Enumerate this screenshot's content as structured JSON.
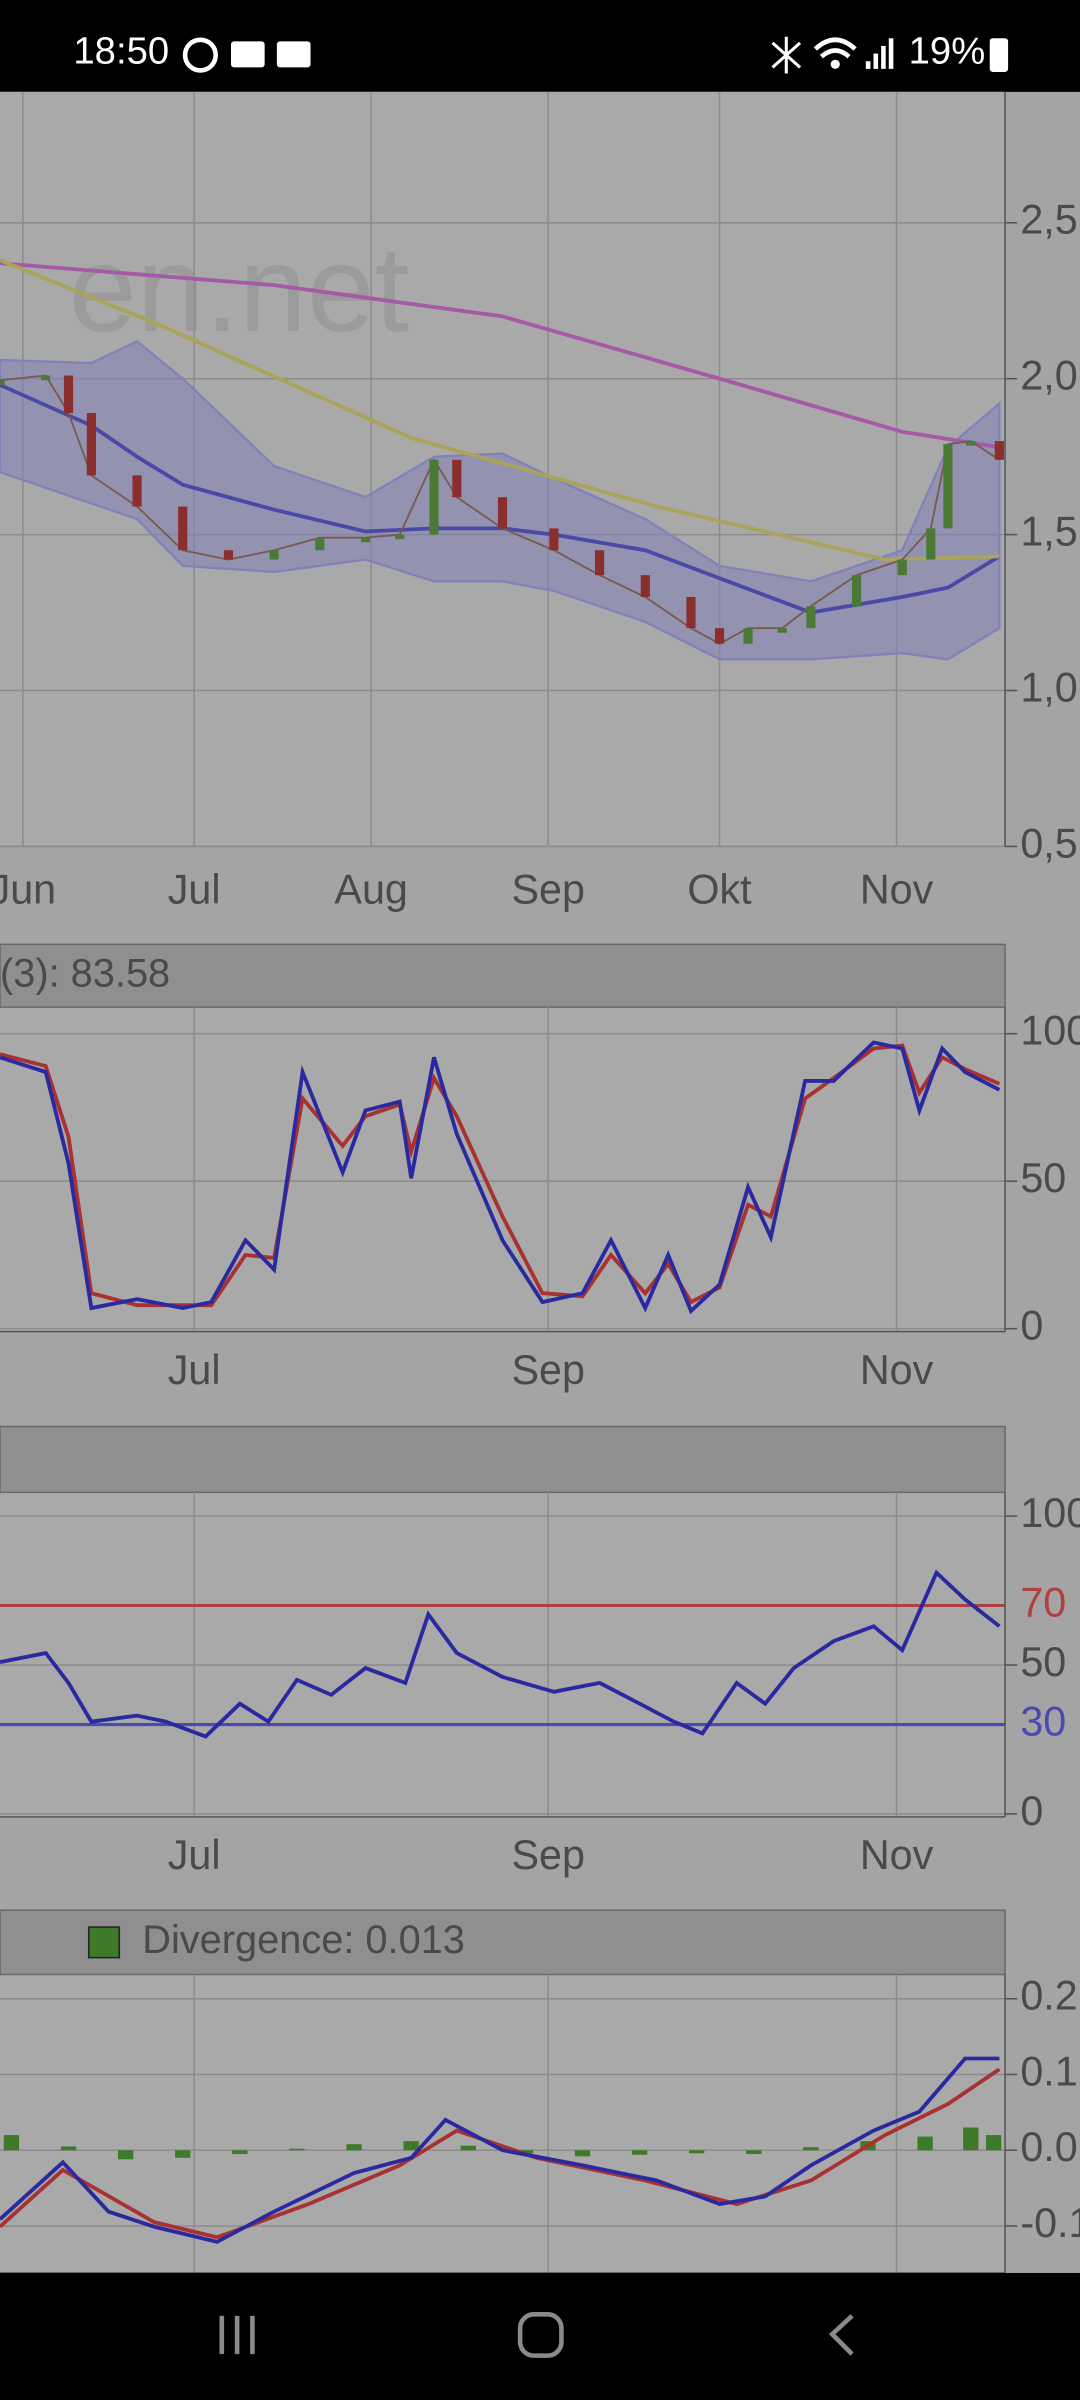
{
  "status_bar": {
    "time": "18:50",
    "battery": "19%"
  },
  "chart_data": [
    {
      "type": "line",
      "watermark": "en.net",
      "xlim": [
        148,
        324
      ],
      "xticks": [
        {
          "value": 152,
          "label": "Jun"
        },
        {
          "value": 182,
          "label": "Jul"
        },
        {
          "value": 213,
          "label": "Aug"
        },
        {
          "value": 244,
          "label": "Sep"
        },
        {
          "value": 274,
          "label": "Okt"
        },
        {
          "value": 305,
          "label": "Nov"
        }
      ],
      "ylim": [
        0.5,
        2.92
      ],
      "yticks": [
        {
          "value": 0.5,
          "label": "0,5"
        },
        {
          "value": 1,
          "label": "1,0"
        },
        {
          "value": 1.5,
          "label": "1,5"
        },
        {
          "value": 2,
          "label": "2,0"
        },
        {
          "value": 2.5,
          "label": "2,5"
        }
      ],
      "grid": true,
      "band": {
        "x": [
          148,
          164,
          172,
          180,
          196,
          212,
          224,
          236,
          245,
          261,
          274,
          290,
          306,
          314,
          323
        ],
        "upper": [
          2.06,
          2.05,
          2.12,
          2.0,
          1.72,
          1.62,
          1.75,
          1.76,
          1.68,
          1.55,
          1.4,
          1.35,
          1.45,
          1.78,
          1.92
        ],
        "lower": [
          1.7,
          1.6,
          1.55,
          1.4,
          1.38,
          1.42,
          1.35,
          1.35,
          1.32,
          1.22,
          1.1,
          1.1,
          1.12,
          1.1,
          1.2
        ],
        "color": "#8282b8"
      },
      "series": [
        {
          "x": [
            148,
            164,
            172,
            180,
            196,
            212,
            224,
            236,
            245,
            261,
            274,
            290,
            306,
            314,
            323
          ],
          "values": [
            1.98,
            1.85,
            1.75,
            1.66,
            1.58,
            1.51,
            1.52,
            1.52,
            1.5,
            1.45,
            1.36,
            1.25,
            1.3,
            1.33,
            1.43
          ],
          "color": "#4a4aa6"
        },
        {
          "x": [
            148,
            196,
            236,
            274,
            306,
            323
          ],
          "values": [
            2.37,
            2.3,
            2.2,
            2.0,
            1.83,
            1.78
          ],
          "color": "#a45aa6"
        },
        {
          "x": [
            148,
            175,
            220,
            263,
            303,
            323
          ],
          "values": [
            2.38,
            2.18,
            1.81,
            1.59,
            1.42,
            1.43
          ],
          "color": "#aaa35a"
        },
        {
          "style": "candles",
          "x": [
            148,
            156,
            160,
            164,
            172,
            180,
            188,
            196,
            204,
            212,
            218,
            224,
            228,
            236,
            245,
            253,
            261,
            269,
            274,
            279,
            285,
            290,
            298,
            306,
            311,
            314,
            318,
            323
          ],
          "values": [
            1.995,
            2.01,
            1.89,
            1.69,
            1.59,
            1.45,
            1.42,
            1.45,
            1.49,
            1.49,
            1.5,
            1.74,
            1.62,
            1.52,
            1.45,
            1.37,
            1.3,
            1.2,
            1.15,
            1.2,
            1.2,
            1.27,
            1.37,
            1.42,
            1.52,
            1.79,
            1.8,
            1.74
          ],
          "up_color": "#4a7a36",
          "down_color": "#8a2e2e"
        }
      ]
    },
    {
      "type": "line",
      "header": "(3): 83.58",
      "xlim": [
        148,
        324
      ],
      "xticks": [
        {
          "value": 182,
          "label": "Jul"
        },
        {
          "value": 244,
          "label": "Sep"
        },
        {
          "value": 305,
          "label": "Nov"
        }
      ],
      "ylim": [
        -1,
        109
      ],
      "yticks": [
        0,
        50,
        100
      ],
      "grid": true,
      "series": [
        {
          "x": [
            148,
            156,
            160,
            164,
            172,
            180,
            185,
            191,
            196,
            201,
            208,
            212,
            218,
            220,
            224,
            228,
            236,
            243,
            250,
            255,
            261,
            265,
            269,
            274,
            279,
            283,
            289,
            294,
            301,
            306,
            309,
            313,
            317,
            323
          ],
          "values": [
            93,
            89,
            65,
            12,
            8,
            8,
            8,
            25,
            24,
            78,
            62,
            72,
            76,
            60,
            85,
            72,
            38,
            12,
            11,
            25,
            12,
            22,
            9,
            14,
            42,
            38,
            78,
            85,
            95,
            96,
            80,
            92,
            88,
            83
          ],
          "color": "#a83232"
        },
        {
          "x": [
            148,
            156,
            160,
            164,
            172,
            180,
            185,
            191,
            196,
            201,
            208,
            212,
            218,
            220,
            224,
            228,
            236,
            243,
            250,
            255,
            261,
            265,
            269,
            274,
            279,
            283,
            289,
            294,
            301,
            306,
            309,
            313,
            317,
            323
          ],
          "values": [
            92,
            87,
            56,
            7,
            10,
            7,
            9,
            30,
            20,
            87,
            53,
            74,
            77,
            51,
            92,
            66,
            30,
            9,
            12,
            30,
            7,
            25,
            6,
            15,
            48,
            31,
            84,
            84,
            97,
            95,
            74,
            95,
            87,
            81
          ],
          "color": "#2a2aa0"
        }
      ]
    },
    {
      "type": "line",
      "xlim": [
        148,
        324
      ],
      "xticks": [
        {
          "value": 182,
          "label": "Jul"
        },
        {
          "value": 244,
          "label": "Sep"
        },
        {
          "value": 305,
          "label": "Nov"
        }
      ],
      "ylim": [
        -1,
        108
      ],
      "yticks": [
        0,
        50,
        100
      ],
      "grid": true,
      "levels": [
        {
          "value": 70,
          "color": "#b04040"
        },
        {
          "value": 30,
          "color": "#4a4ab4"
        }
      ],
      "series": [
        {
          "x": [
            148,
            156,
            160,
            164,
            172,
            177,
            184,
            190,
            195,
            200,
            206,
            212,
            219,
            223,
            228,
            236,
            245,
            253,
            259,
            266,
            271,
            277,
            282,
            287,
            294,
            301,
            306,
            312,
            317,
            323
          ],
          "values": [
            51,
            54,
            44,
            31,
            33,
            31,
            26,
            37,
            31,
            45,
            40,
            49,
            44,
            67,
            54,
            46,
            41,
            44,
            38,
            31,
            27,
            44,
            37,
            49,
            58,
            63,
            55,
            81,
            72,
            63
          ],
          "color": "#2a2aa0"
        }
      ]
    },
    {
      "type": "line",
      "xlim": [
        148,
        324
      ],
      "x_grid": [
        182,
        244,
        305
      ],
      "ylim": [
        -0.162,
        0.232
      ],
      "yticks": [
        -0.1,
        {
          "value": 0,
          "label": "0.0"
        },
        0.1,
        0.2
      ],
      "grid": true,
      "series": [
        {
          "name": "Divergence: 0.013",
          "style": "bars",
          "color": "#3e7a2a",
          "x": [
            150,
            160,
            170,
            180,
            190,
            200,
            210,
            220,
            230,
            240,
            250,
            260,
            270,
            280,
            290,
            300,
            310,
            318,
            322
          ],
          "values": [
            0.02,
            0.005,
            -0.012,
            -0.01,
            -0.005,
            0.002,
            0.008,
            0.012,
            0.006,
            -0.004,
            -0.008,
            -0.006,
            -0.004,
            -0.005,
            0.004,
            0.012,
            0.018,
            0.03,
            0.02
          ]
        },
        {
          "x": [
            148,
            159,
            175,
            186,
            202,
            218,
            228,
            242,
            261,
            277,
            290,
            303,
            314,
            323
          ],
          "values": [
            -0.101,
            -0.026,
            -0.095,
            -0.115,
            -0.071,
            -0.02,
            0.026,
            -0.01,
            -0.04,
            -0.071,
            -0.04,
            0.02,
            0.061,
            0.107
          ],
          "color": "#a83232"
        },
        {
          "x": [
            148,
            159,
            167,
            175,
            186,
            196,
            210,
            220,
            226,
            236,
            250,
            263,
            274,
            282,
            290,
            301,
            309,
            317,
            323
          ],
          "values": [
            -0.091,
            -0.016,
            -0.081,
            -0.101,
            -0.121,
            -0.081,
            -0.03,
            -0.01,
            0.04,
            0,
            -0.02,
            -0.04,
            -0.071,
            -0.061,
            -0.02,
            0.026,
            0.051,
            0.121,
            0.121
          ],
          "color": "#2a2aa0"
        }
      ]
    }
  ]
}
